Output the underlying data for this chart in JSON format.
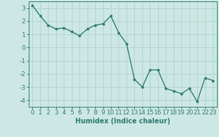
{
  "x": [
    0,
    1,
    2,
    3,
    4,
    5,
    6,
    7,
    8,
    9,
    10,
    11,
    12,
    13,
    14,
    15,
    16,
    17,
    18,
    19,
    20,
    21,
    22,
    23
  ],
  "y": [
    3.2,
    2.4,
    1.7,
    1.4,
    1.5,
    1.2,
    0.9,
    1.4,
    1.7,
    1.8,
    2.4,
    1.1,
    0.3,
    -2.4,
    -3.0,
    -1.7,
    -1.7,
    -3.1,
    -3.3,
    -3.5,
    -3.1,
    -4.1,
    -2.3,
    -2.5
  ],
  "line_color": "#2d7a6e",
  "marker": "o",
  "marker_size": 1.8,
  "linewidth": 1.0,
  "bg_color": "#cde8e4",
  "grid_color": "#b0d4cf",
  "xlabel": "Humidex (Indice chaleur)",
  "ylim": [
    -4.5,
    3.5
  ],
  "xlim": [
    -0.5,
    23.5
  ],
  "yticks": [
    -4,
    -3,
    -2,
    -1,
    0,
    1,
    2,
    3
  ],
  "xtick_labels": [
    "0",
    "1",
    "2",
    "3",
    "4",
    "5",
    "6",
    "7",
    "8",
    "9",
    "10",
    "11",
    "12",
    "13",
    "14",
    "15",
    "16",
    "17",
    "18",
    "19",
    "20",
    "21",
    "22",
    "23"
  ],
  "xlabel_fontsize": 7,
  "tick_fontsize": 6.5
}
